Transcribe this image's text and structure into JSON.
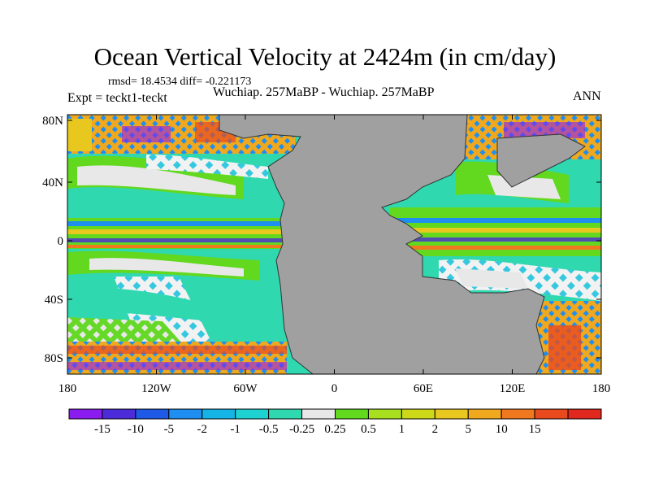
{
  "figure": {
    "title": "Ocean Vertical Velocity at 2424m (in cm/day)",
    "stats": "rmsd= 18.4534 diff= -0.221173",
    "experiment": "Expt = teckt1-teckt",
    "cases": "Wuchiap. 257MaBP - Wuchiap. 257MaBP",
    "season": "ANN"
  },
  "map": {
    "lat_ticks": [
      "80N",
      "40N",
      "0",
      "40S",
      "80S"
    ],
    "lon_ticks": [
      "180",
      "120W",
      "60W",
      "0",
      "60E",
      "120E",
      "180"
    ],
    "land_color": "#a0a0a0"
  },
  "colorbar": {
    "colors": [
      "#8a1cf0",
      "#4c2cd8",
      "#1e5ae6",
      "#1e8ef0",
      "#14b4e6",
      "#1ed2d2",
      "#30d8b0",
      "#e8e8e8",
      "#62d81e",
      "#a8e020",
      "#cdd818",
      "#e8c81e",
      "#f0a81e",
      "#f0781e",
      "#e84a1e",
      "#e0281e"
    ],
    "labels": [
      "-15",
      "-10",
      "-5",
      "-2",
      "-1",
      "-0.5",
      "-0.25",
      "0.25",
      "0.5",
      "1",
      "2",
      "5",
      "10",
      "15"
    ]
  }
}
